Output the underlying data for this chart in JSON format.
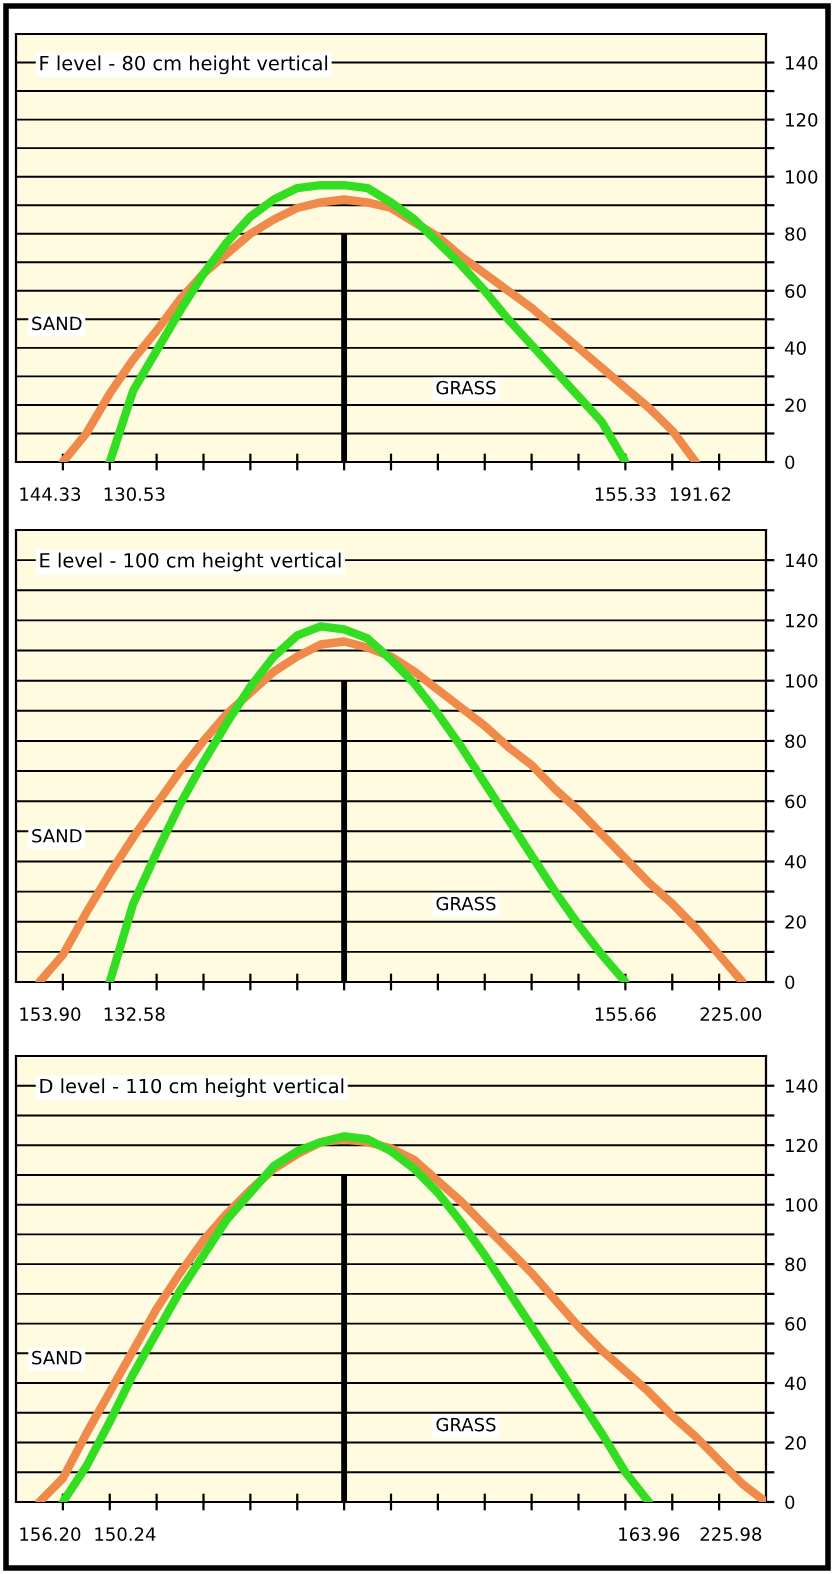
{
  "chart_data": [
    {
      "type": "line",
      "title": "F level - 80 cm height vertical",
      "categories": [
        null,
        null,
        null,
        null,
        null,
        null,
        null,
        null,
        null,
        null,
        null,
        null,
        null,
        null,
        null,
        null,
        null,
        null,
        null,
        null,
        null,
        null,
        null,
        null,
        null,
        null,
        null,
        null,
        null,
        null,
        null,
        null
      ],
      "ylim": [
        0,
        150
      ],
      "yticks": [
        0,
        {
          "value": 10,
          "label": null
        },
        20,
        {
          "value": 30,
          "label": null
        },
        40,
        {
          "value": 50,
          "label": null
        },
        60,
        {
          "value": 70,
          "label": null
        },
        80,
        {
          "value": 90,
          "label": null
        },
        100,
        {
          "value": 110,
          "label": null
        },
        120,
        {
          "value": 130,
          "label": null
        },
        140
      ],
      "tick_labels": "y",
      "grid": "y",
      "series": [
        {
          "color": "#ef8a4a",
          "values": [
            null,
            0,
            10,
            24,
            36,
            46,
            57,
            66,
            73,
            80,
            85,
            89,
            91,
            92,
            91,
            89,
            84,
            79,
            72,
            66,
            60,
            54,
            47,
            40,
            33,
            26,
            19,
            11,
            0,
            null,
            null,
            null
          ]
        },
        {
          "color": "#33dd22",
          "values": [
            null,
            null,
            null,
            0,
            25,
            39,
            53,
            66,
            77,
            86,
            92,
            96,
            97,
            97,
            96,
            91,
            85,
            77,
            69,
            60,
            50,
            41,
            32,
            23,
            14,
            0,
            null,
            null,
            null,
            null,
            null,
            null
          ]
        },
        {
          "type": "bar",
          "color": "#000000",
          "values": [
            null,
            null,
            null,
            null,
            null,
            null,
            null,
            null,
            null,
            null,
            null,
            null,
            null,
            80,
            null,
            null,
            null,
            null,
            null,
            null,
            null,
            null,
            null,
            null,
            null,
            null,
            null,
            null,
            null,
            null,
            null,
            null
          ]
        }
      ],
      "annotations": [
        "144.33",
        "130.53",
        "155.33",
        "191.62",
        "SAND",
        "GRASS"
      ]
    },
    {
      "type": "line",
      "title": "E level - 100 cm height vertical",
      "categories": [
        null,
        null,
        null,
        null,
        null,
        null,
        null,
        null,
        null,
        null,
        null,
        null,
        null,
        null,
        null,
        null,
        null,
        null,
        null,
        null,
        null,
        null,
        null,
        null,
        null,
        null,
        null,
        null,
        null,
        null,
        null,
        null
      ],
      "ylim": [
        0,
        150
      ],
      "yticks": [
        0,
        {
          "value": 10,
          "label": null
        },
        20,
        {
          "value": 30,
          "label": null
        },
        40,
        {
          "value": 50,
          "label": null
        },
        60,
        {
          "value": 70,
          "label": null
        },
        80,
        {
          "value": 90,
          "label": null
        },
        100,
        {
          "value": 110,
          "label": null
        },
        120,
        {
          "value": 130,
          "label": null
        },
        140
      ],
      "tick_labels": "y",
      "grid": "y",
      "series": [
        {
          "color": "#ef8a4a",
          "values": [
            0,
            9,
            23,
            36,
            48,
            59,
            70,
            80,
            89,
            96,
            103,
            108,
            112,
            113,
            111,
            108,
            103,
            97,
            91,
            85,
            78,
            72,
            64,
            57,
            49,
            41,
            33,
            26,
            18,
            9,
            0,
            null
          ]
        },
        {
          "color": "#33dd22",
          "values": [
            null,
            null,
            null,
            0,
            26,
            43,
            59,
            73,
            86,
            98,
            108,
            115,
            118,
            117,
            114,
            107,
            99,
            89,
            78,
            66,
            54,
            42,
            30,
            19,
            9,
            0,
            null,
            null,
            null,
            null,
            null,
            null
          ]
        },
        {
          "type": "bar",
          "color": "#000000",
          "values": [
            null,
            null,
            null,
            null,
            null,
            null,
            null,
            null,
            null,
            null,
            null,
            null,
            null,
            100,
            null,
            null,
            null,
            null,
            null,
            null,
            null,
            null,
            null,
            null,
            null,
            null,
            null,
            null,
            null,
            null,
            null,
            null
          ]
        }
      ],
      "annotations": [
        "153.90",
        "132.58",
        "155.66",
        "225.00",
        "SAND",
        "GRASS"
      ]
    },
    {
      "type": "line",
      "title": "D level - 110 cm height vertical",
      "categories": [
        null,
        null,
        null,
        null,
        null,
        null,
        null,
        null,
        null,
        null,
        null,
        null,
        null,
        null,
        null,
        null,
        null,
        null,
        null,
        null,
        null,
        null,
        null,
        null,
        null,
        null,
        null,
        null,
        null,
        null,
        null,
        null
      ],
      "ylim": [
        0,
        150
      ],
      "yticks": [
        0,
        {
          "value": 10,
          "label": null
        },
        20,
        {
          "value": 30,
          "label": null
        },
        40,
        {
          "value": 50,
          "label": null
        },
        60,
        {
          "value": 70,
          "label": null
        },
        80,
        {
          "value": 90,
          "label": null
        },
        100,
        {
          "value": 110,
          "label": null
        },
        120,
        {
          "value": 130,
          "label": null
        },
        140
      ],
      "tick_labels": "y",
      "grid": "y",
      "series": [
        {
          "color": "#ef8a4a",
          "values": [
            0,
            8,
            23,
            37,
            51,
            65,
            77,
            88,
            97,
            105,
            112,
            117,
            121,
            122,
            121,
            119,
            115,
            108,
            101,
            93,
            85,
            77,
            68,
            59,
            51,
            44,
            37,
            29,
            22,
            14,
            6,
            0
          ]
        },
        {
          "color": "#33dd22",
          "values": [
            null,
            0,
            12,
            27,
            43,
            57,
            71,
            83,
            95,
            104,
            113,
            118,
            121,
            123,
            122,
            118,
            112,
            104,
            94,
            83,
            71,
            59,
            47,
            35,
            23,
            10,
            0,
            null,
            null,
            null,
            null,
            null
          ]
        },
        {
          "type": "bar",
          "color": "#000000",
          "values": [
            null,
            null,
            null,
            null,
            null,
            null,
            null,
            null,
            null,
            null,
            null,
            null,
            null,
            110,
            null,
            null,
            null,
            null,
            null,
            null,
            null,
            null,
            null,
            null,
            null,
            null,
            null,
            null,
            null,
            null,
            null,
            null
          ]
        }
      ],
      "annotations": [
        "156.20",
        "150.24",
        "163.96",
        "225.98",
        "SAND",
        "GRASS"
      ]
    }
  ]
}
